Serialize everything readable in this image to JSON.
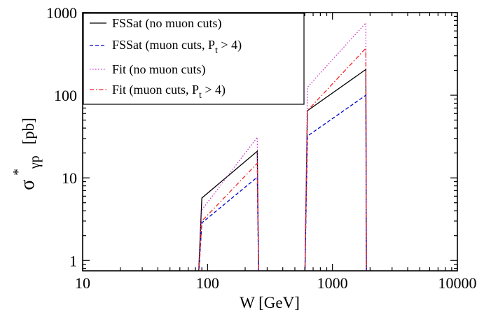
{
  "chart_data": {
    "type": "line",
    "title": "",
    "xlabel": "W [GeV]",
    "ylabel": {
      "symbol": "σ",
      "superscript": "*",
      "subscript": "γp",
      "unit": "[pb]"
    },
    "xscale": "log",
    "yscale": "log",
    "xlim": [
      10,
      10000
    ],
    "ylim": [
      0.75,
      1000
    ],
    "x_ticks": [
      {
        "value": 10,
        "label": "10"
      },
      {
        "value": 100,
        "label": "100"
      },
      {
        "value": 1000,
        "label": "1000"
      },
      {
        "value": 10000,
        "label": "10000"
      }
    ],
    "y_ticks": [
      {
        "value": 1,
        "label": "1"
      },
      {
        "value": 10,
        "label": "10"
      },
      {
        "value": 100,
        "label": "100"
      },
      {
        "value": 1000,
        "label": "1000"
      }
    ],
    "grid": false,
    "legend": {
      "placement": "top-left",
      "entries": [
        {
          "name": "FSSat (no muon cuts)"
        },
        {
          "name": "FSSat (muon cuts, P",
          "sub": "t",
          "suffix": " > 4)"
        },
        {
          "name": "Fit (no muon cuts)"
        },
        {
          "name": "Fit (muon cuts, P",
          "sub": "t",
          "suffix": " > 4)"
        }
      ]
    },
    "series": [
      {
        "name": "FSSat (no muon cuts)",
        "color": "#000000",
        "dash": "solid",
        "segments": [
          [
            [
              84,
              0.5
            ],
            [
              90,
              5.7
            ],
            [
              250,
              21
            ],
            [
              257,
              0.5
            ]
          ],
          [
            [
              600,
              0.5
            ],
            [
              630,
              65
            ],
            [
              1850,
              205
            ],
            [
              1870,
              0.5
            ]
          ]
        ]
      },
      {
        "name": "FSSat (muon cuts, P_t > 4)",
        "color": "#0000cc",
        "dash": "dashed",
        "segments": [
          [
            [
              84,
              0.5
            ],
            [
              90,
              2.85
            ],
            [
              250,
              10.2
            ],
            [
              257,
              0.5
            ]
          ],
          [
            [
              600,
              0.5
            ],
            [
              630,
              32
            ],
            [
              1850,
              100
            ],
            [
              1870,
              0.5
            ]
          ]
        ]
      },
      {
        "name": "Fit (no muon cuts)",
        "color": "#cc33cc",
        "dash": "dotted",
        "segments": [
          [
            [
              84,
              0.5
            ],
            [
              90,
              4.1
            ],
            [
              250,
              31
            ],
            [
              257,
              0.5
            ]
          ],
          [
            [
              600,
              0.5
            ],
            [
              630,
              125
            ],
            [
              1850,
              750
            ],
            [
              1870,
              0.5
            ]
          ]
        ]
      },
      {
        "name": "Fit (muon cuts, P_t > 4)",
        "color": "#ee2222",
        "dash": "dashdot",
        "segments": [
          [
            [
              84,
              0.5
            ],
            [
              90,
              3.0
            ],
            [
              250,
              15
            ],
            [
              257,
              0.5
            ]
          ],
          [
            [
              600,
              0.5
            ],
            [
              630,
              65
            ],
            [
              1850,
              370
            ],
            [
              1870,
              0.5
            ]
          ]
        ]
      }
    ]
  }
}
